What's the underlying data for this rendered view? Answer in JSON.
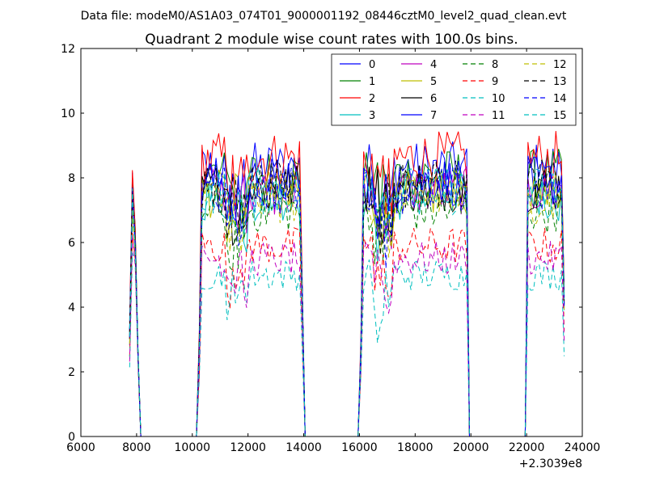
{
  "chart_data": {
    "type": "line",
    "suptitle": "Data file: modeM0/AS1A03_074T01_9000001192_08446cztM0_level2_quad_clean.evt",
    "title": "Quadrant 2 module wise count rates with 100.0s bins.",
    "xlabel": "",
    "ylabel": "",
    "x_offset_label": "+2.3039e8",
    "xlim": [
      6000,
      24000
    ],
    "ylim": [
      0,
      12
    ],
    "xticks": [
      6000,
      8000,
      10000,
      12000,
      14000,
      16000,
      18000,
      20000,
      22000,
      24000
    ],
    "yticks": [
      0,
      2,
      4,
      6,
      8,
      10,
      12
    ],
    "xtick_labels": [
      "6000",
      "8000",
      "10000",
      "12000",
      "14000",
      "16000",
      "18000",
      "20000",
      "22000",
      "24000"
    ],
    "ytick_labels": [
      "0",
      "2",
      "4",
      "6",
      "8",
      "10",
      "12"
    ],
    "legend_position": "top-right",
    "bin_width": 100,
    "x_start": 7750,
    "x_end": 23350,
    "on_segments": [
      [
        7750,
        8050
      ],
      [
        10250,
        13950
      ],
      [
        16050,
        19900
      ],
      [
        22000,
        23350
      ]
    ],
    "series": [
      {
        "name": "0",
        "color": "#0000ff",
        "dash": "solid",
        "level": 8.3
      },
      {
        "name": "1",
        "color": "#008000",
        "dash": "solid",
        "level": 8.1
      },
      {
        "name": "2",
        "color": "#ff0000",
        "dash": "solid",
        "level": 8.6
      },
      {
        "name": "3",
        "color": "#00bfbf",
        "dash": "solid",
        "level": 7.4
      },
      {
        "name": "4",
        "color": "#bf00bf",
        "dash": "solid",
        "level": 7.6
      },
      {
        "name": "5",
        "color": "#bfbf00",
        "dash": "solid",
        "level": 7.5
      },
      {
        "name": "6",
        "color": "#000000",
        "dash": "solid",
        "level": 7.7
      },
      {
        "name": "7",
        "color": "#0000ff",
        "dash": "solid",
        "level": 7.9
      },
      {
        "name": "8",
        "color": "#008000",
        "dash": "dashed",
        "level": 7.0
      },
      {
        "name": "9",
        "color": "#ff0000",
        "dash": "dashed",
        "level": 5.9
      },
      {
        "name": "10",
        "color": "#00bfbf",
        "dash": "dashed",
        "level": 5.0
      },
      {
        "name": "11",
        "color": "#bf00bf",
        "dash": "dashed",
        "level": 5.5
      },
      {
        "name": "12",
        "color": "#bfbf00",
        "dash": "dashed",
        "level": 7.3
      },
      {
        "name": "13",
        "color": "#000000",
        "dash": "dashed",
        "level": 7.8
      },
      {
        "name": "14",
        "color": "#0000ff",
        "dash": "dashed",
        "level": 7.6
      },
      {
        "name": "15",
        "color": "#00bfbf",
        "dash": "dashed",
        "level": 7.6
      }
    ]
  }
}
